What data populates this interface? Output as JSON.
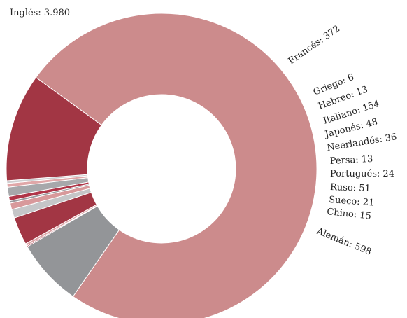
{
  "chart_data": {
    "type": "pie",
    "donut": true,
    "legend": "none",
    "categories": [
      "Inglés",
      "Francés",
      "Griego",
      "Hebreo",
      "Italiano",
      "Japonés",
      "Neerlandés",
      "Persa",
      "Portugués",
      "Ruso",
      "Sueco",
      "Chino",
      "Alemán"
    ],
    "values": [
      3980,
      372,
      6,
      13,
      154,
      48,
      36,
      13,
      24,
      51,
      21,
      15,
      598
    ],
    "value_labels": [
      "3.980",
      "372",
      "6",
      "13",
      "154",
      "48",
      "36",
      "13",
      "24",
      "51",
      "21",
      "15",
      "598"
    ],
    "colors": [
      "#cc8b8c",
      "#939598",
      "#9b2335",
      "#dca4a6",
      "#a23644",
      "#c5c6c8",
      "#d8999b",
      "#9a9a9e",
      "#b03548",
      "#a7a8ab",
      "#e0a7a8",
      "#cfcfd1",
      "#a23644"
    ]
  }
}
